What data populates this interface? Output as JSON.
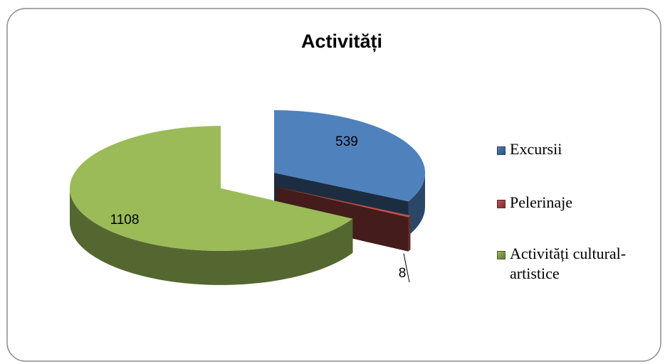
{
  "chart_data": {
    "type": "pie",
    "title": "Activități",
    "categories": [
      "Excursii",
      "Pelerinaje",
      "Activități cultural-artistice"
    ],
    "values": [
      539,
      8,
      1108
    ],
    "colors": [
      "#4f81bd",
      "#c0504d",
      "#9bbb59"
    ],
    "legend": "right"
  }
}
